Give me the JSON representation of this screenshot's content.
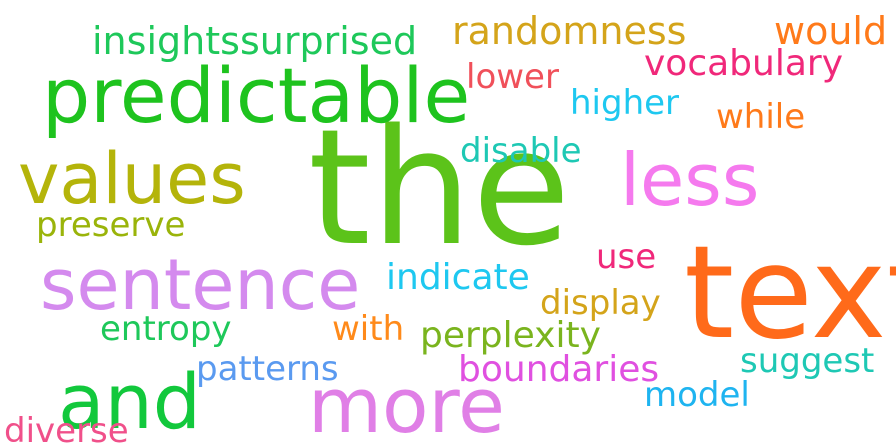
{
  "words": [
    {
      "text": "the",
      "color": "#5cc31a"
    },
    {
      "text": "text",
      "color": "#ff6a1a"
    },
    {
      "text": "predictable",
      "color": "#1ec31e"
    },
    {
      "text": "values",
      "color": "#b4b40a"
    },
    {
      "text": "sentence",
      "color": "#d48aee"
    },
    {
      "text": "more",
      "color": "#e07fe6"
    },
    {
      "text": "and",
      "color": "#12c83c"
    },
    {
      "text": "less",
      "color": "#f57aee"
    },
    {
      "text": "insights",
      "color": "#1ec85a"
    },
    {
      "text": "surprised",
      "color": "#1ec85a"
    },
    {
      "text": "randomness",
      "color": "#d4a41a"
    },
    {
      "text": "would",
      "color": "#ff7a1a"
    },
    {
      "text": "vocabulary",
      "color": "#f0287a"
    },
    {
      "text": "lower",
      "color": "#f0505a"
    },
    {
      "text": "higher",
      "color": "#1ec8f0"
    },
    {
      "text": "while",
      "color": "#ff7a1a"
    },
    {
      "text": "disable",
      "color": "#1ec8b4"
    },
    {
      "text": "preserve",
      "color": "#9ab40a"
    },
    {
      "text": "use",
      "color": "#f0287a"
    },
    {
      "text": "indicate",
      "color": "#1ec8f0"
    },
    {
      "text": "display",
      "color": "#d4a41a"
    },
    {
      "text": "entropy",
      "color": "#1ec85a"
    },
    {
      "text": "with",
      "color": "#ff8a1a"
    },
    {
      "text": "perplexity",
      "color": "#7ab41e"
    },
    {
      "text": "suggest",
      "color": "#1ec8b4"
    },
    {
      "text": "patterns",
      "color": "#5a9af0"
    },
    {
      "text": "boundaries",
      "color": "#e050e0"
    },
    {
      "text": "model",
      "color": "#1eb4f0"
    },
    {
      "text": "diverse",
      "color": "#f0508a"
    }
  ]
}
